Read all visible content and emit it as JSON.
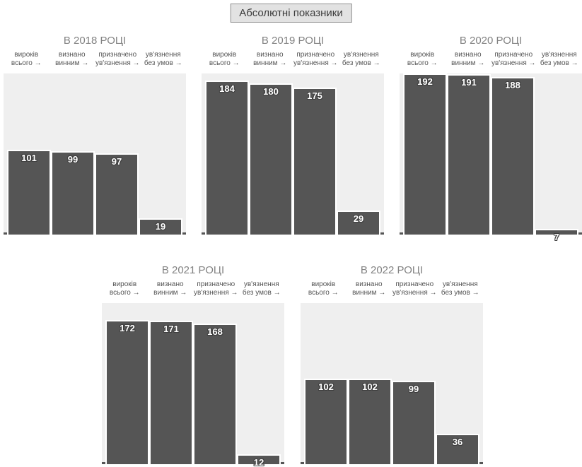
{
  "header": {
    "button_label": "Абсолютні показники"
  },
  "colors": {
    "bar": "#555555",
    "plot_background": "#efefef",
    "axis_line": "#555555",
    "title_text": "#828282",
    "category_text": "#555555",
    "value_text": "#ffffff",
    "value_outline": "#3f3f3f",
    "button_background": "#e2e2e2",
    "button_border": "#909090"
  },
  "chart_data": [
    {
      "type": "bar",
      "title": "В 2018 РОЦІ",
      "categories": [
        [
          "вироків",
          "всього →"
        ],
        [
          "визнано",
          "винним →"
        ],
        [
          "призначено",
          "ув'язнення →"
        ],
        [
          "ув'язнення",
          "без умов →"
        ]
      ],
      "values": [
        101,
        99,
        97,
        19
      ],
      "ylim": [
        0,
        192
      ],
      "grid": false,
      "legend": "none"
    },
    {
      "type": "bar",
      "title": "В 2019 РОЦІ",
      "categories": [
        [
          "вироків",
          "всього →"
        ],
        [
          "визнано",
          "винним →"
        ],
        [
          "призначено",
          "ув'язнення →"
        ],
        [
          "ув'язнення",
          "без умов →"
        ]
      ],
      "values": [
        184,
        180,
        175,
        29
      ],
      "ylim": [
        0,
        192
      ],
      "grid": false,
      "legend": "none"
    },
    {
      "type": "bar",
      "title": "В 2020 РОЦІ",
      "categories": [
        [
          "вироків",
          "всього →"
        ],
        [
          "визнано",
          "винним →"
        ],
        [
          "призначено",
          "ув'язнення →"
        ],
        [
          "ув'язнення",
          "без умов →"
        ]
      ],
      "values": [
        192,
        191,
        188,
        7
      ],
      "ylim": [
        0,
        192
      ],
      "grid": false,
      "legend": "none"
    },
    {
      "type": "bar",
      "title": "В 2021 РОЦІ",
      "categories": [
        [
          "вироків",
          "всього →"
        ],
        [
          "визнано",
          "винним →"
        ],
        [
          "призначено",
          "ув'язнення →"
        ],
        [
          "ув'язнення",
          "без умов →"
        ]
      ],
      "values": [
        172,
        171,
        168,
        12
      ],
      "ylim": [
        0,
        192
      ],
      "grid": false,
      "legend": "none"
    },
    {
      "type": "bar",
      "title": "В 2022 РОЦІ",
      "categories": [
        [
          "вироків",
          "всього →"
        ],
        [
          "визнано",
          "винним →"
        ],
        [
          "призначено",
          "ув'язнення →"
        ],
        [
          "ув'язнення",
          "без умов →"
        ]
      ],
      "values": [
        102,
        102,
        99,
        36
      ],
      "ylim": [
        0,
        192
      ],
      "grid": false,
      "legend": "none"
    }
  ]
}
